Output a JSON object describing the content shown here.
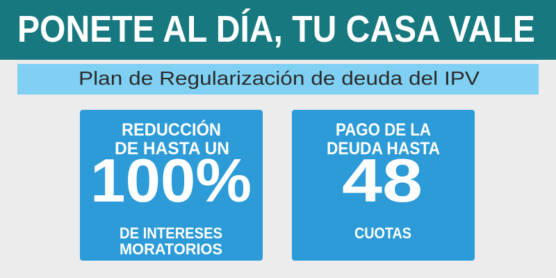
{
  "header": {
    "title": "PONETE AL DÍA, TU CASA VALE",
    "subtitle": "Plan de Regularización de deuda del IPV"
  },
  "cards": [
    {
      "top": [
        "REDUCCIÓN",
        "DE HASTA UN"
      ],
      "big": "100%",
      "bottom": [
        "DE INTERESES",
        "MORATORIOS"
      ]
    },
    {
      "top": [
        "PAGO DE LA",
        "DEUDA HASTA"
      ],
      "big": "48",
      "bottom": [
        "CUOTAS"
      ]
    }
  ]
}
